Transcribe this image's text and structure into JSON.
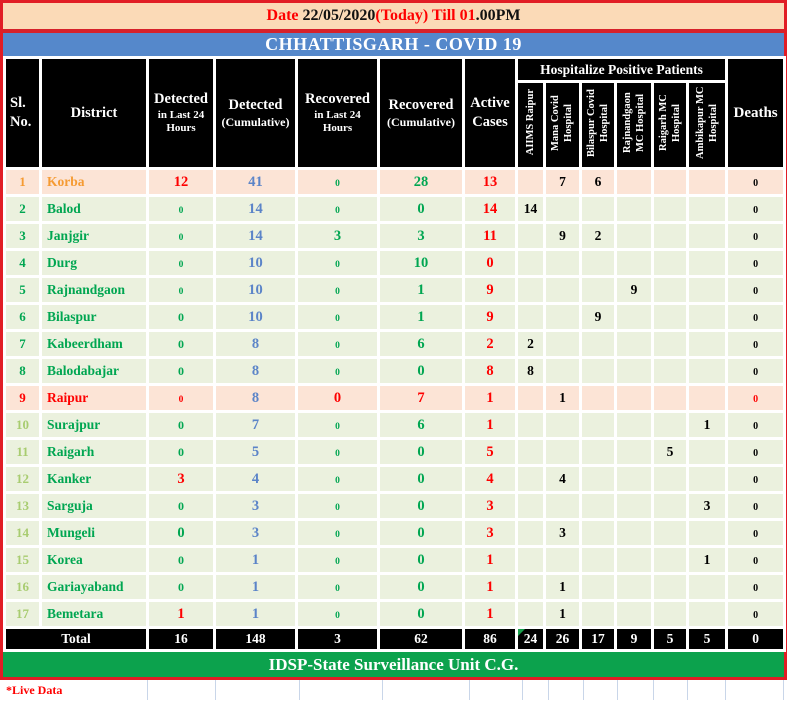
{
  "banner": {
    "date_prefix": "Date ",
    "date_value": "22/05/2020",
    "date_mid": "(Today) Till 01",
    "date_suffix": ".00PM"
  },
  "title": "CHHATTISGARH - COVID 19",
  "footer": {
    "text": "IDSP-State Surveillance Unit C.G."
  },
  "live_data": "*Live Data",
  "colors": {
    "accent_red": "#e11d25",
    "bright_red": "#fe0000",
    "banner_peach": "#fbdab7",
    "banner_blue": "#5588cb",
    "footer_green": "#0ca24d",
    "row_green": "#ebf1de",
    "row_peach": "#fce4d6",
    "num_blue": "#5b84c8",
    "num_green": "#00a651",
    "num_orange": "#f59b33",
    "sl_lightgreen": "#a8cc70",
    "grid_blue": "#c9d6e9"
  },
  "table": {
    "main_headers": [
      {
        "key": "sl-no",
        "lines": [
          "Sl.",
          "No."
        ],
        "big": true
      },
      {
        "key": "district",
        "lines": [
          "District"
        ],
        "big": true
      },
      {
        "key": "detected-24h",
        "lines": [
          "Detected",
          "in Last 24",
          "Hours"
        ]
      },
      {
        "key": "detected-cumulative",
        "lines": [
          "Detected",
          "(Cumulative)"
        ]
      },
      {
        "key": "recovered-24h",
        "lines": [
          "Recovered",
          "in Last 24",
          "Hours"
        ]
      },
      {
        "key": "recovered-cumulative",
        "lines": [
          "Recovered",
          "(Cumulative)"
        ]
      },
      {
        "key": "active-cases",
        "lines": [
          "Active",
          "Cases"
        ],
        "big": true
      }
    ],
    "hospital_group": "Hospitalize Positive Patients",
    "hospital_cols": [
      "AIIMS Raipur",
      "Mana Covid Hospital",
      "Bilaspur Covid Hospital",
      "Rajnandgaon MC Hospital",
      "Raigarh MC Hospital",
      "Ambikapur MC Hospital"
    ],
    "deaths_header": "Deaths",
    "rows": [
      {
        "sl": "1",
        "nm": "Korba",
        "bg": "peach",
        "slc": "orange",
        "nmc": "orange",
        "d24": {
          "v": "12",
          "c": "red",
          "s": "lg"
        },
        "dc": "41",
        "r24": {
          "v": "0",
          "c": "green",
          "s": "sm"
        },
        "rc": {
          "v": "28",
          "c": "green"
        },
        "act": "13",
        "hosp": [
          "",
          "7",
          "6",
          "",
          "",
          ""
        ],
        "deaths": {
          "v": "0",
          "c": "blk"
        }
      },
      {
        "sl": "2",
        "nm": "Balod",
        "bg": "green",
        "slc": "green",
        "nmc": "green",
        "d24": {
          "v": "0",
          "c": "green",
          "s": "sm"
        },
        "dc": "14",
        "r24": {
          "v": "0",
          "c": "green",
          "s": "sm"
        },
        "rc": {
          "v": "0",
          "c": "green"
        },
        "act": "14",
        "hosp": [
          "14",
          "",
          "",
          "",
          "",
          ""
        ],
        "deaths": {
          "v": "0",
          "c": "blk"
        }
      },
      {
        "sl": "3",
        "nm": "Janjgir",
        "bg": "green",
        "slc": "green",
        "nmc": "green",
        "d24": {
          "v": "0",
          "c": "green",
          "s": "sm"
        },
        "dc": "14",
        "r24": {
          "v": "3",
          "c": "green",
          "s": "lg"
        },
        "rc": {
          "v": "3",
          "c": "green"
        },
        "act": "11",
        "hosp": [
          "",
          "9",
          "2",
          "",
          "",
          ""
        ],
        "deaths": {
          "v": "0",
          "c": "blk"
        }
      },
      {
        "sl": "4",
        "nm": "Durg",
        "bg": "green",
        "slc": "green",
        "nmc": "green",
        "d24": {
          "v": "0",
          "c": "green",
          "s": "sm"
        },
        "dc": "10",
        "r24": {
          "v": "0",
          "c": "green",
          "s": "sm"
        },
        "rc": {
          "v": "10",
          "c": "green"
        },
        "act": "0",
        "hosp": [
          "",
          "",
          "",
          "",
          "",
          ""
        ],
        "deaths": {
          "v": "0",
          "c": "blk"
        }
      },
      {
        "sl": "5",
        "nm": "Rajnandgaon",
        "bg": "green",
        "slc": "green",
        "nmc": "green",
        "d24": {
          "v": "0",
          "c": "green",
          "s": "sm"
        },
        "dc": "10",
        "r24": {
          "v": "0",
          "c": "green",
          "s": "sm"
        },
        "rc": {
          "v": "1",
          "c": "green"
        },
        "act": "9",
        "hosp": [
          "",
          "",
          "",
          "9",
          "",
          ""
        ],
        "deaths": {
          "v": "0",
          "c": "blk"
        }
      },
      {
        "sl": "6",
        "nm": "Bilaspur",
        "bg": "green",
        "slc": "green",
        "nmc": "green",
        "d24": {
          "v": "0",
          "c": "green",
          "s": "md"
        },
        "dc": "10",
        "r24": {
          "v": "0",
          "c": "green",
          "s": "sm"
        },
        "rc": {
          "v": "1",
          "c": "green"
        },
        "act": "9",
        "hosp": [
          "",
          "",
          "9",
          "",
          "",
          ""
        ],
        "deaths": {
          "v": "0",
          "c": "blk"
        }
      },
      {
        "sl": "7",
        "nm": "Kabeerdham",
        "bg": "green",
        "slc": "green",
        "nmc": "green",
        "d24": {
          "v": "0",
          "c": "green",
          "s": "md"
        },
        "dc": "8",
        "r24": {
          "v": "0",
          "c": "green",
          "s": "sm"
        },
        "rc": {
          "v": "6",
          "c": "green"
        },
        "act": "2",
        "hosp": [
          "2",
          "",
          "",
          "",
          "",
          ""
        ],
        "deaths": {
          "v": "0",
          "c": "blk"
        }
      },
      {
        "sl": "8",
        "nm": "Balodabajar",
        "bg": "green",
        "slc": "green",
        "nmc": "green",
        "d24": {
          "v": "0",
          "c": "green",
          "s": "md"
        },
        "dc": "8",
        "r24": {
          "v": "0",
          "c": "green",
          "s": "sm"
        },
        "rc": {
          "v": "0",
          "c": "green"
        },
        "act": "8",
        "hosp": [
          "8",
          "",
          "",
          "",
          "",
          ""
        ],
        "deaths": {
          "v": "0",
          "c": "blk"
        }
      },
      {
        "sl": "9",
        "nm": "Raipur",
        "bg": "peach",
        "slc": "red",
        "nmc": "red",
        "d24": {
          "v": "0",
          "c": "red",
          "s": "sm"
        },
        "dc": "8",
        "r24": {
          "v": "0",
          "c": "red",
          "s": "lg"
        },
        "rc": {
          "v": "7",
          "c": "red"
        },
        "act": "1",
        "hosp": [
          "",
          "1",
          "",
          "",
          "",
          ""
        ],
        "deaths": {
          "v": "0",
          "c": "red"
        }
      },
      {
        "sl": "10",
        "nm": "Surajpur",
        "bg": "green",
        "slc": "lightgreen",
        "nmc": "green",
        "d24": {
          "v": "0",
          "c": "green",
          "s": "md"
        },
        "dc": "7",
        "r24": {
          "v": "0",
          "c": "green",
          "s": "sm"
        },
        "rc": {
          "v": "6",
          "c": "green"
        },
        "act": "1",
        "hosp": [
          "",
          "",
          "",
          "",
          "",
          "1"
        ],
        "deaths": {
          "v": "0",
          "c": "blk"
        }
      },
      {
        "sl": "11",
        "nm": "Raigarh",
        "bg": "green",
        "slc": "lightgreen",
        "nmc": "green",
        "d24": {
          "v": "0",
          "c": "green",
          "s": "md"
        },
        "dc": "5",
        "r24": {
          "v": "0",
          "c": "green",
          "s": "sm"
        },
        "rc": {
          "v": "0",
          "c": "green"
        },
        "act": "5",
        "hosp": [
          "",
          "",
          "",
          "",
          "5",
          ""
        ],
        "deaths": {
          "v": "0",
          "c": "blk"
        }
      },
      {
        "sl": "12",
        "nm": "Kanker",
        "bg": "green",
        "slc": "lightgreen",
        "nmc": "green",
        "d24": {
          "v": "3",
          "c": "red",
          "s": "lg"
        },
        "dc": "4",
        "r24": {
          "v": "0",
          "c": "green",
          "s": "sm"
        },
        "rc": {
          "v": "0",
          "c": "green"
        },
        "act": "4",
        "hosp": [
          "",
          "4",
          "",
          "",
          "",
          ""
        ],
        "deaths": {
          "v": "0",
          "c": "blk"
        }
      },
      {
        "sl": "13",
        "nm": "Sarguja",
        "bg": "green",
        "slc": "lightgreen",
        "nmc": "green",
        "d24": {
          "v": "0",
          "c": "green",
          "s": "md"
        },
        "dc": "3",
        "r24": {
          "v": "0",
          "c": "green",
          "s": "sm"
        },
        "rc": {
          "v": "0",
          "c": "green"
        },
        "act": "3",
        "hosp": [
          "",
          "",
          "",
          "",
          "",
          "3"
        ],
        "deaths": {
          "v": "0",
          "c": "blk"
        }
      },
      {
        "sl": "14",
        "nm": "Mungeli",
        "bg": "green",
        "slc": "lightgreen",
        "nmc": "green",
        "d24": {
          "v": "0",
          "c": "green",
          "s": "lg"
        },
        "dc": "3",
        "r24": {
          "v": "0",
          "c": "green",
          "s": "sm"
        },
        "rc": {
          "v": "0",
          "c": "green"
        },
        "act": "3",
        "hosp": [
          "",
          "3",
          "",
          "",
          "",
          ""
        ],
        "deaths": {
          "v": "0",
          "c": "blk"
        }
      },
      {
        "sl": "15",
        "nm": "Korea",
        "bg": "green",
        "slc": "lightgreen",
        "nmc": "green",
        "d24": {
          "v": "0",
          "c": "green",
          "s": "md"
        },
        "dc": "1",
        "r24": {
          "v": "0",
          "c": "green",
          "s": "sm"
        },
        "rc": {
          "v": "0",
          "c": "green"
        },
        "act": "1",
        "hosp": [
          "",
          "",
          "",
          "",
          "",
          "1"
        ],
        "deaths": {
          "v": "0",
          "c": "blk"
        }
      },
      {
        "sl": "16",
        "nm": "Gariayaband",
        "bg": "green",
        "slc": "lightgreen",
        "nmc": "green",
        "d24": {
          "v": "0",
          "c": "green",
          "s": "md"
        },
        "dc": "1",
        "r24": {
          "v": "0",
          "c": "green",
          "s": "sm"
        },
        "rc": {
          "v": "0",
          "c": "green"
        },
        "act": "1",
        "hosp": [
          "",
          "1",
          "",
          "",
          "",
          ""
        ],
        "deaths": {
          "v": "0",
          "c": "blk"
        }
      },
      {
        "sl": "17",
        "nm": "Bemetara",
        "bg": "green",
        "slc": "lightgreen",
        "nmc": "green",
        "d24": {
          "v": "1",
          "c": "red",
          "s": "lg"
        },
        "dc": "1",
        "r24": {
          "v": "0",
          "c": "green",
          "s": "sm"
        },
        "rc": {
          "v": "0",
          "c": "green"
        },
        "act": "1",
        "hosp": [
          "",
          "1",
          "",
          "",
          "",
          ""
        ],
        "deaths": {
          "v": "0",
          "c": "blk"
        }
      }
    ],
    "total": {
      "label": "Total",
      "values": [
        "16",
        "148",
        "3",
        "62",
        "86",
        "24",
        "26",
        "17",
        "9",
        "5",
        "5",
        "0"
      ],
      "note_index": 5
    }
  }
}
